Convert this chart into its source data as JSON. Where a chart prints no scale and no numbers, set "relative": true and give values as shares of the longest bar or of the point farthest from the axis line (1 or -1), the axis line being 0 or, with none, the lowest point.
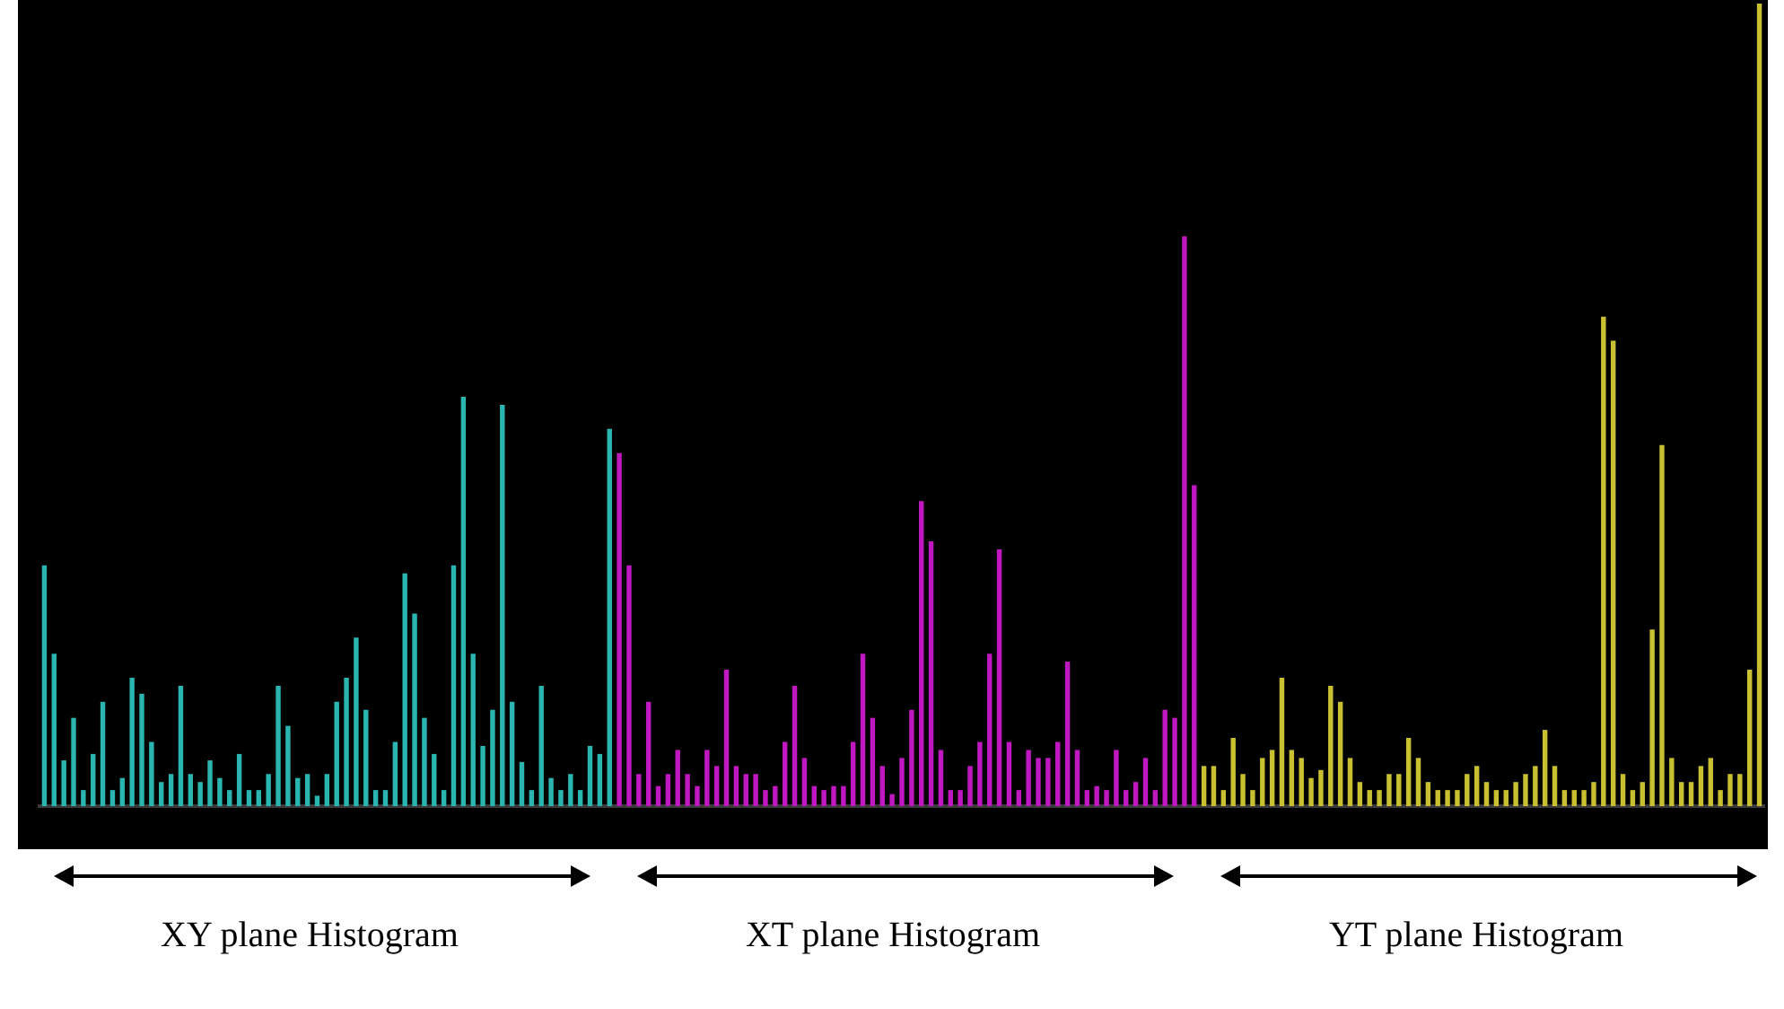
{
  "chart_data": {
    "type": "bar",
    "relative": true,
    "legend": false,
    "categories": [
      null,
      null,
      null,
      null,
      null,
      null,
      null,
      null,
      null,
      null,
      null,
      null,
      null,
      null,
      null,
      null,
      null,
      null,
      null,
      null,
      null,
      null,
      null,
      null,
      null,
      null,
      null,
      null,
      null,
      null,
      null,
      null,
      null,
      null,
      null,
      null,
      null,
      null,
      null,
      null,
      null,
      null,
      null,
      null,
      null,
      null,
      null,
      null,
      null,
      null,
      null,
      null,
      null,
      null,
      null,
      null,
      null,
      null,
      null,
      null,
      null,
      null,
      null,
      null,
      null,
      null,
      null,
      null,
      null,
      null,
      null,
      null,
      null,
      null,
      null,
      null,
      null,
      null,
      null,
      null,
      null,
      null,
      null,
      null,
      null,
      null,
      null,
      null,
      null,
      null,
      null,
      null,
      null,
      null,
      null,
      null,
      null,
      null,
      null,
      null,
      null,
      null,
      null,
      null,
      null,
      null,
      null,
      null,
      null,
      null,
      null,
      null,
      null,
      null,
      null,
      null,
      null,
      null,
      null,
      null,
      null,
      null,
      null,
      null,
      null,
      null,
      null,
      null,
      null,
      null,
      null,
      null,
      null,
      null,
      null,
      null,
      null,
      null,
      null,
      null,
      null,
      null,
      null,
      null,
      null,
      null,
      null,
      null,
      null,
      null,
      null,
      null,
      null,
      null,
      null,
      null,
      null,
      null,
      null,
      null,
      null,
      null,
      null,
      null,
      null,
      null,
      null,
      null,
      null,
      null,
      null,
      null,
      null,
      null,
      null,
      null,
      null
    ],
    "values": [
      0.3,
      0.19,
      0.057,
      0.11,
      0.02,
      0.065,
      0.13,
      0.02,
      0.035,
      0.16,
      0.14,
      0.08,
      0.03,
      0.04,
      0.15,
      0.04,
      0.03,
      0.057,
      0.035,
      0.02,
      0.065,
      0.02,
      0.02,
      0.04,
      0.15,
      0.1,
      0.035,
      0.04,
      0.013,
      0.04,
      0.13,
      0.16,
      0.21,
      0.12,
      0.02,
      0.02,
      0.08,
      0.29,
      0.24,
      0.11,
      0.065,
      0.02,
      0.3,
      0.51,
      0.19,
      0.075,
      0.12,
      0.5,
      0.13,
      0.055,
      0.02,
      0.15,
      0.035,
      0.02,
      0.04,
      0.02,
      0.075,
      0.065,
      0.47,
      0.44,
      0.3,
      0.04,
      0.13,
      0.025,
      0.04,
      0.07,
      0.04,
      0.025,
      0.07,
      0.05,
      0.17,
      0.05,
      0.04,
      0.04,
      0.02,
      0.025,
      0.08,
      0.15,
      0.06,
      0.025,
      0.02,
      0.025,
      0.025,
      0.08,
      0.19,
      0.11,
      0.05,
      0.015,
      0.06,
      0.12,
      0.38,
      0.33,
      0.07,
      0.02,
      0.02,
      0.05,
      0.08,
      0.19,
      0.32,
      0.08,
      0.02,
      0.07,
      0.06,
      0.06,
      0.08,
      0.18,
      0.07,
      0.02,
      0.025,
      0.02,
      0.07,
      0.02,
      0.03,
      0.06,
      0.02,
      0.12,
      0.11,
      0.71,
      0.4,
      0.05,
      0.05,
      0.02,
      0.085,
      0.04,
      0.02,
      0.06,
      0.07,
      0.16,
      0.07,
      0.06,
      0.035,
      0.045,
      0.15,
      0.13,
      0.06,
      0.03,
      0.02,
      0.02,
      0.04,
      0.04,
      0.085,
      0.06,
      0.03,
      0.02,
      0.02,
      0.02,
      0.04,
      0.05,
      0.03,
      0.02,
      0.02,
      0.03,
      0.04,
      0.05,
      0.095,
      0.05,
      0.02,
      0.02,
      0.02,
      0.03,
      0.61,
      0.58,
      0.04,
      0.02,
      0.03,
      0.22,
      0.45,
      0.06,
      0.03,
      0.03,
      0.05,
      0.06,
      0.02,
      0.04,
      0.04,
      0.17,
      1.0
    ],
    "colors": [
      "#2ab5b0",
      "#2ab5b0",
      "#2ab5b0",
      "#2ab5b0",
      "#2ab5b0",
      "#2ab5b0",
      "#2ab5b0",
      "#2ab5b0",
      "#2ab5b0",
      "#2ab5b0",
      "#2ab5b0",
      "#2ab5b0",
      "#2ab5b0",
      "#2ab5b0",
      "#2ab5b0",
      "#2ab5b0",
      "#2ab5b0",
      "#2ab5b0",
      "#2ab5b0",
      "#2ab5b0",
      "#2ab5b0",
      "#2ab5b0",
      "#2ab5b0",
      "#2ab5b0",
      "#2ab5b0",
      "#2ab5b0",
      "#2ab5b0",
      "#2ab5b0",
      "#2ab5b0",
      "#2ab5b0",
      "#2ab5b0",
      "#2ab5b0",
      "#2ab5b0",
      "#2ab5b0",
      "#2ab5b0",
      "#2ab5b0",
      "#2ab5b0",
      "#2ab5b0",
      "#2ab5b0",
      "#2ab5b0",
      "#2ab5b0",
      "#2ab5b0",
      "#2ab5b0",
      "#2ab5b0",
      "#2ab5b0",
      "#2ab5b0",
      "#2ab5b0",
      "#2ab5b0",
      "#2ab5b0",
      "#2ab5b0",
      "#2ab5b0",
      "#2ab5b0",
      "#2ab5b0",
      "#2ab5b0",
      "#2ab5b0",
      "#2ab5b0",
      "#2ab5b0",
      "#2ab5b0",
      "#2ab5b0",
      "#c018c0",
      "#c018c0",
      "#c018c0",
      "#c018c0",
      "#c018c0",
      "#c018c0",
      "#c018c0",
      "#c018c0",
      "#c018c0",
      "#c018c0",
      "#c018c0",
      "#c018c0",
      "#c018c0",
      "#c018c0",
      "#c018c0",
      "#c018c0",
      "#c018c0",
      "#c018c0",
      "#c018c0",
      "#c018c0",
      "#c018c0",
      "#c018c0",
      "#c018c0",
      "#c018c0",
      "#c018c0",
      "#c018c0",
      "#c018c0",
      "#c018c0",
      "#c018c0",
      "#c018c0",
      "#c018c0",
      "#c018c0",
      "#c018c0",
      "#c018c0",
      "#c018c0",
      "#c018c0",
      "#c018c0",
      "#c018c0",
      "#c018c0",
      "#c018c0",
      "#c018c0",
      "#c018c0",
      "#c018c0",
      "#c018c0",
      "#c018c0",
      "#c018c0",
      "#c018c0",
      "#c018c0",
      "#c018c0",
      "#c018c0",
      "#c018c0",
      "#c018c0",
      "#c018c0",
      "#c018c0",
      "#c018c0",
      "#c018c0",
      "#c018c0",
      "#c018c0",
      "#c018c0",
      "#c018c0",
      "#c8c030",
      "#c8c030",
      "#c8c030",
      "#c8c030",
      "#c8c030",
      "#c8c030",
      "#c8c030",
      "#c8c030",
      "#c8c030",
      "#c8c030",
      "#c8c030",
      "#c8c030",
      "#c8c030",
      "#c8c030",
      "#c8c030",
      "#c8c030",
      "#c8c030",
      "#c8c030",
      "#c8c030",
      "#c8c030",
      "#c8c030",
      "#c8c030",
      "#c8c030",
      "#c8c030",
      "#c8c030",
      "#c8c030",
      "#c8c030",
      "#c8c030",
      "#c8c030",
      "#c8c030",
      "#c8c030",
      "#c8c030",
      "#c8c030",
      "#c8c030",
      "#c8c030",
      "#c8c030",
      "#c8c030",
      "#c8c030",
      "#c8c030",
      "#c8c030",
      "#c8c030",
      "#c8c030",
      "#c8c030",
      "#c8c030",
      "#c8c030",
      "#c8c030",
      "#c8c030",
      "#c8c030",
      "#c8c030",
      "#c8c030",
      "#c8c030",
      "#c8c030",
      "#c8c030",
      "#c8c030",
      "#c8c030",
      "#c8c030",
      "#c8c030",
      "#c8c030"
    ],
    "annotations": [
      "XY plane Histogram",
      "XT plane Histogram",
      "YT plane Histogram"
    ]
  }
}
